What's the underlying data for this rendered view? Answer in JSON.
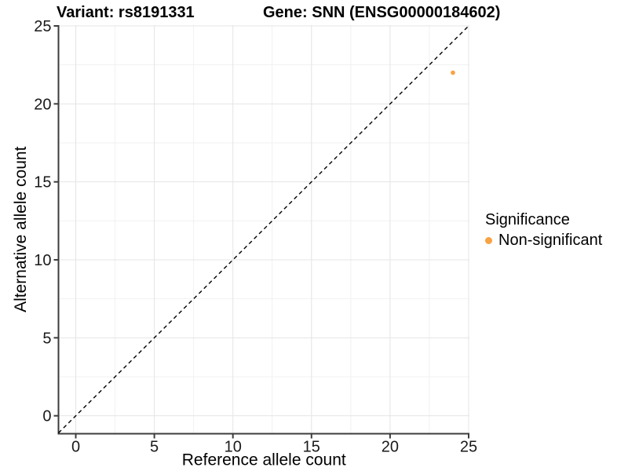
{
  "header": {
    "title_left": "Variant: rs8191331",
    "title_right": "Gene: SNN (ENSG00000184602)"
  },
  "chart_data": {
    "type": "scatter",
    "title_left": "Variant: rs8191331",
    "title_right": "Gene: SNN (ENSG00000184602)",
    "xlabel": "Reference allele count",
    "ylabel": "Alternative allele count",
    "xlim": [
      -1.1,
      25.05
    ],
    "ylim": [
      -1.15,
      25.05
    ],
    "xticks": [
      0,
      5,
      10,
      15,
      20,
      25
    ],
    "yticks": [
      0,
      5,
      10,
      15,
      20,
      25
    ],
    "minor_ticks_x": [
      2.5,
      7.5,
      12.5,
      17.5,
      22.5
    ],
    "minor_ticks_y": [
      2.5,
      7.5,
      12.5,
      17.5,
      22.5
    ],
    "grid": true,
    "identity_line": {
      "slope": 1,
      "intercept": 0,
      "style": "dashed",
      "color": "#000000"
    },
    "series": [
      {
        "name": "Non-significant",
        "color": "#F9A242",
        "points": [
          {
            "x": 24,
            "y": 22
          }
        ]
      }
    ],
    "legend": {
      "title": "Significance",
      "position": "right",
      "entries": [
        {
          "label": "Non-significant",
          "color": "#F9A242"
        }
      ]
    },
    "style": {
      "axis_line_color": "#3c3c3c",
      "tick_label_color": "#1a1a1a",
      "grid_major_color": "#e4e4e4",
      "grid_minor_color": "#f1f1f1",
      "point_radius": 2.8,
      "background": "#ffffff"
    }
  }
}
